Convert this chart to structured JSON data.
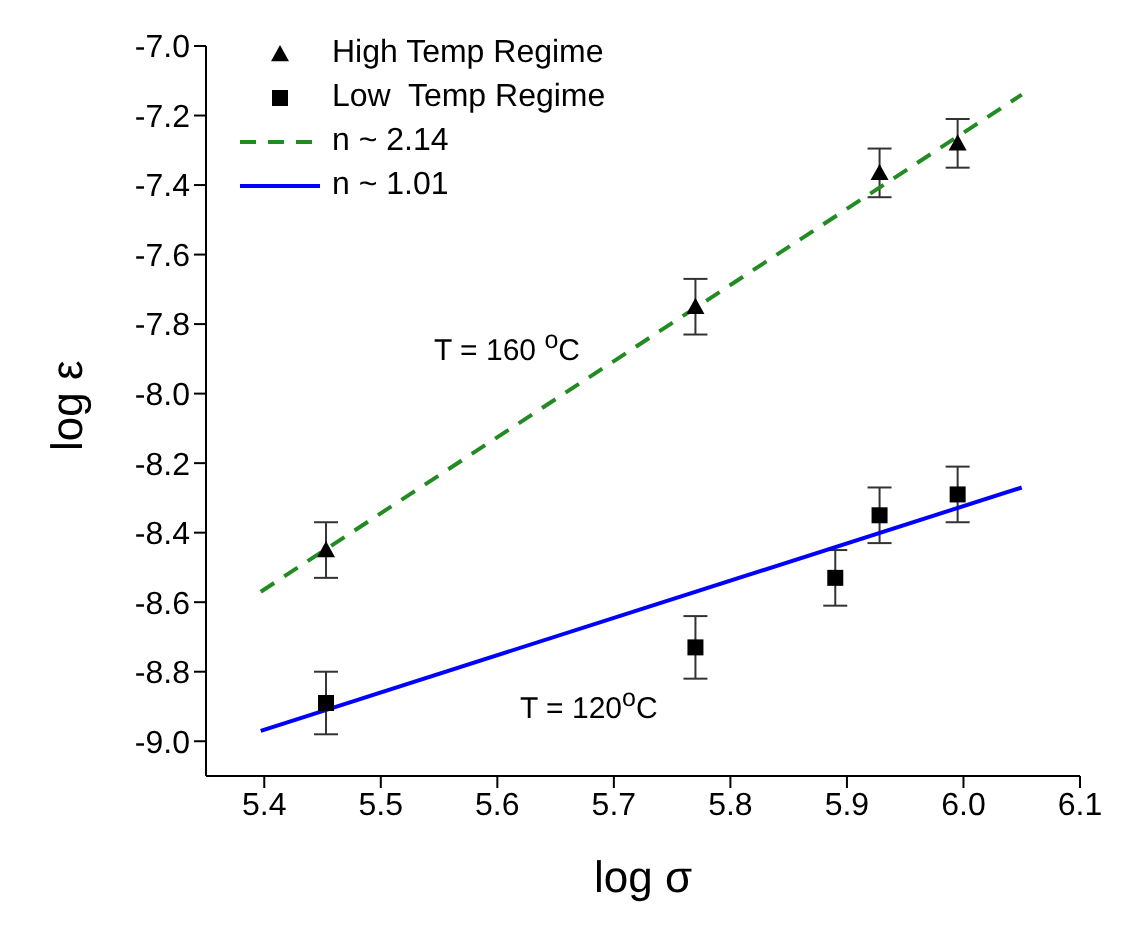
{
  "chart_data": {
    "type": "scatter",
    "xlabel": "log σ",
    "ylabel": "log ε",
    "xlim": [
      5.35,
      6.1
    ],
    "xticks": [
      5.4,
      5.5,
      5.6,
      5.7,
      5.8,
      5.9,
      {
        "value": 6,
        "label": "6.0"
      },
      6.1
    ],
    "ylim": [
      -9.1,
      -7.0
    ],
    "yticks": [
      {
        "value": -9,
        "label": "-9.0"
      },
      -8.8,
      -8.6,
      -8.4,
      -8.2,
      {
        "value": -8,
        "label": "-8.0"
      },
      -7.8,
      -7.6,
      -7.4,
      -7.2,
      {
        "value": -7,
        "label": "-7.0"
      }
    ],
    "grid": false,
    "legend": "top left",
    "series": [
      {
        "name": "High Temp Regime",
        "marker": "triangle",
        "color": "#000000",
        "x": [
          5.453,
          5.77,
          5.928,
          5.995
        ],
        "values": [
          -8.45,
          -7.75,
          -7.365,
          -7.28
        ],
        "errors": [
          0.08,
          0.08,
          0.07,
          0.07
        ]
      },
      {
        "name": "Low  Temp Regime",
        "marker": "square",
        "color": "#000000",
        "x": [
          5.453,
          5.77,
          5.89,
          5.928,
          5.995
        ],
        "values": [
          -8.89,
          -8.73,
          -8.53,
          -8.35,
          -8.29
        ],
        "errors": [
          0.09,
          0.09,
          0.08,
          0.08,
          0.08
        ]
      },
      {
        "name": "n ~ 2.14",
        "type": "line",
        "line_style": "dashed",
        "marker": "none",
        "color": "#228b22",
        "x": [
          5.397,
          6.05
        ],
        "values": [
          -8.57,
          -7.14
        ]
      },
      {
        "name": "n ~ 1.01",
        "type": "line",
        "line_style": "solid",
        "marker": "none",
        "color": "#0000ff",
        "x": [
          5.397,
          6.05
        ],
        "values": [
          -8.97,
          -8.27
        ]
      }
    ],
    "annotations": [
      "T = 160 $^{o}$C",
      "T = 120$^{o}$C"
    ]
  }
}
